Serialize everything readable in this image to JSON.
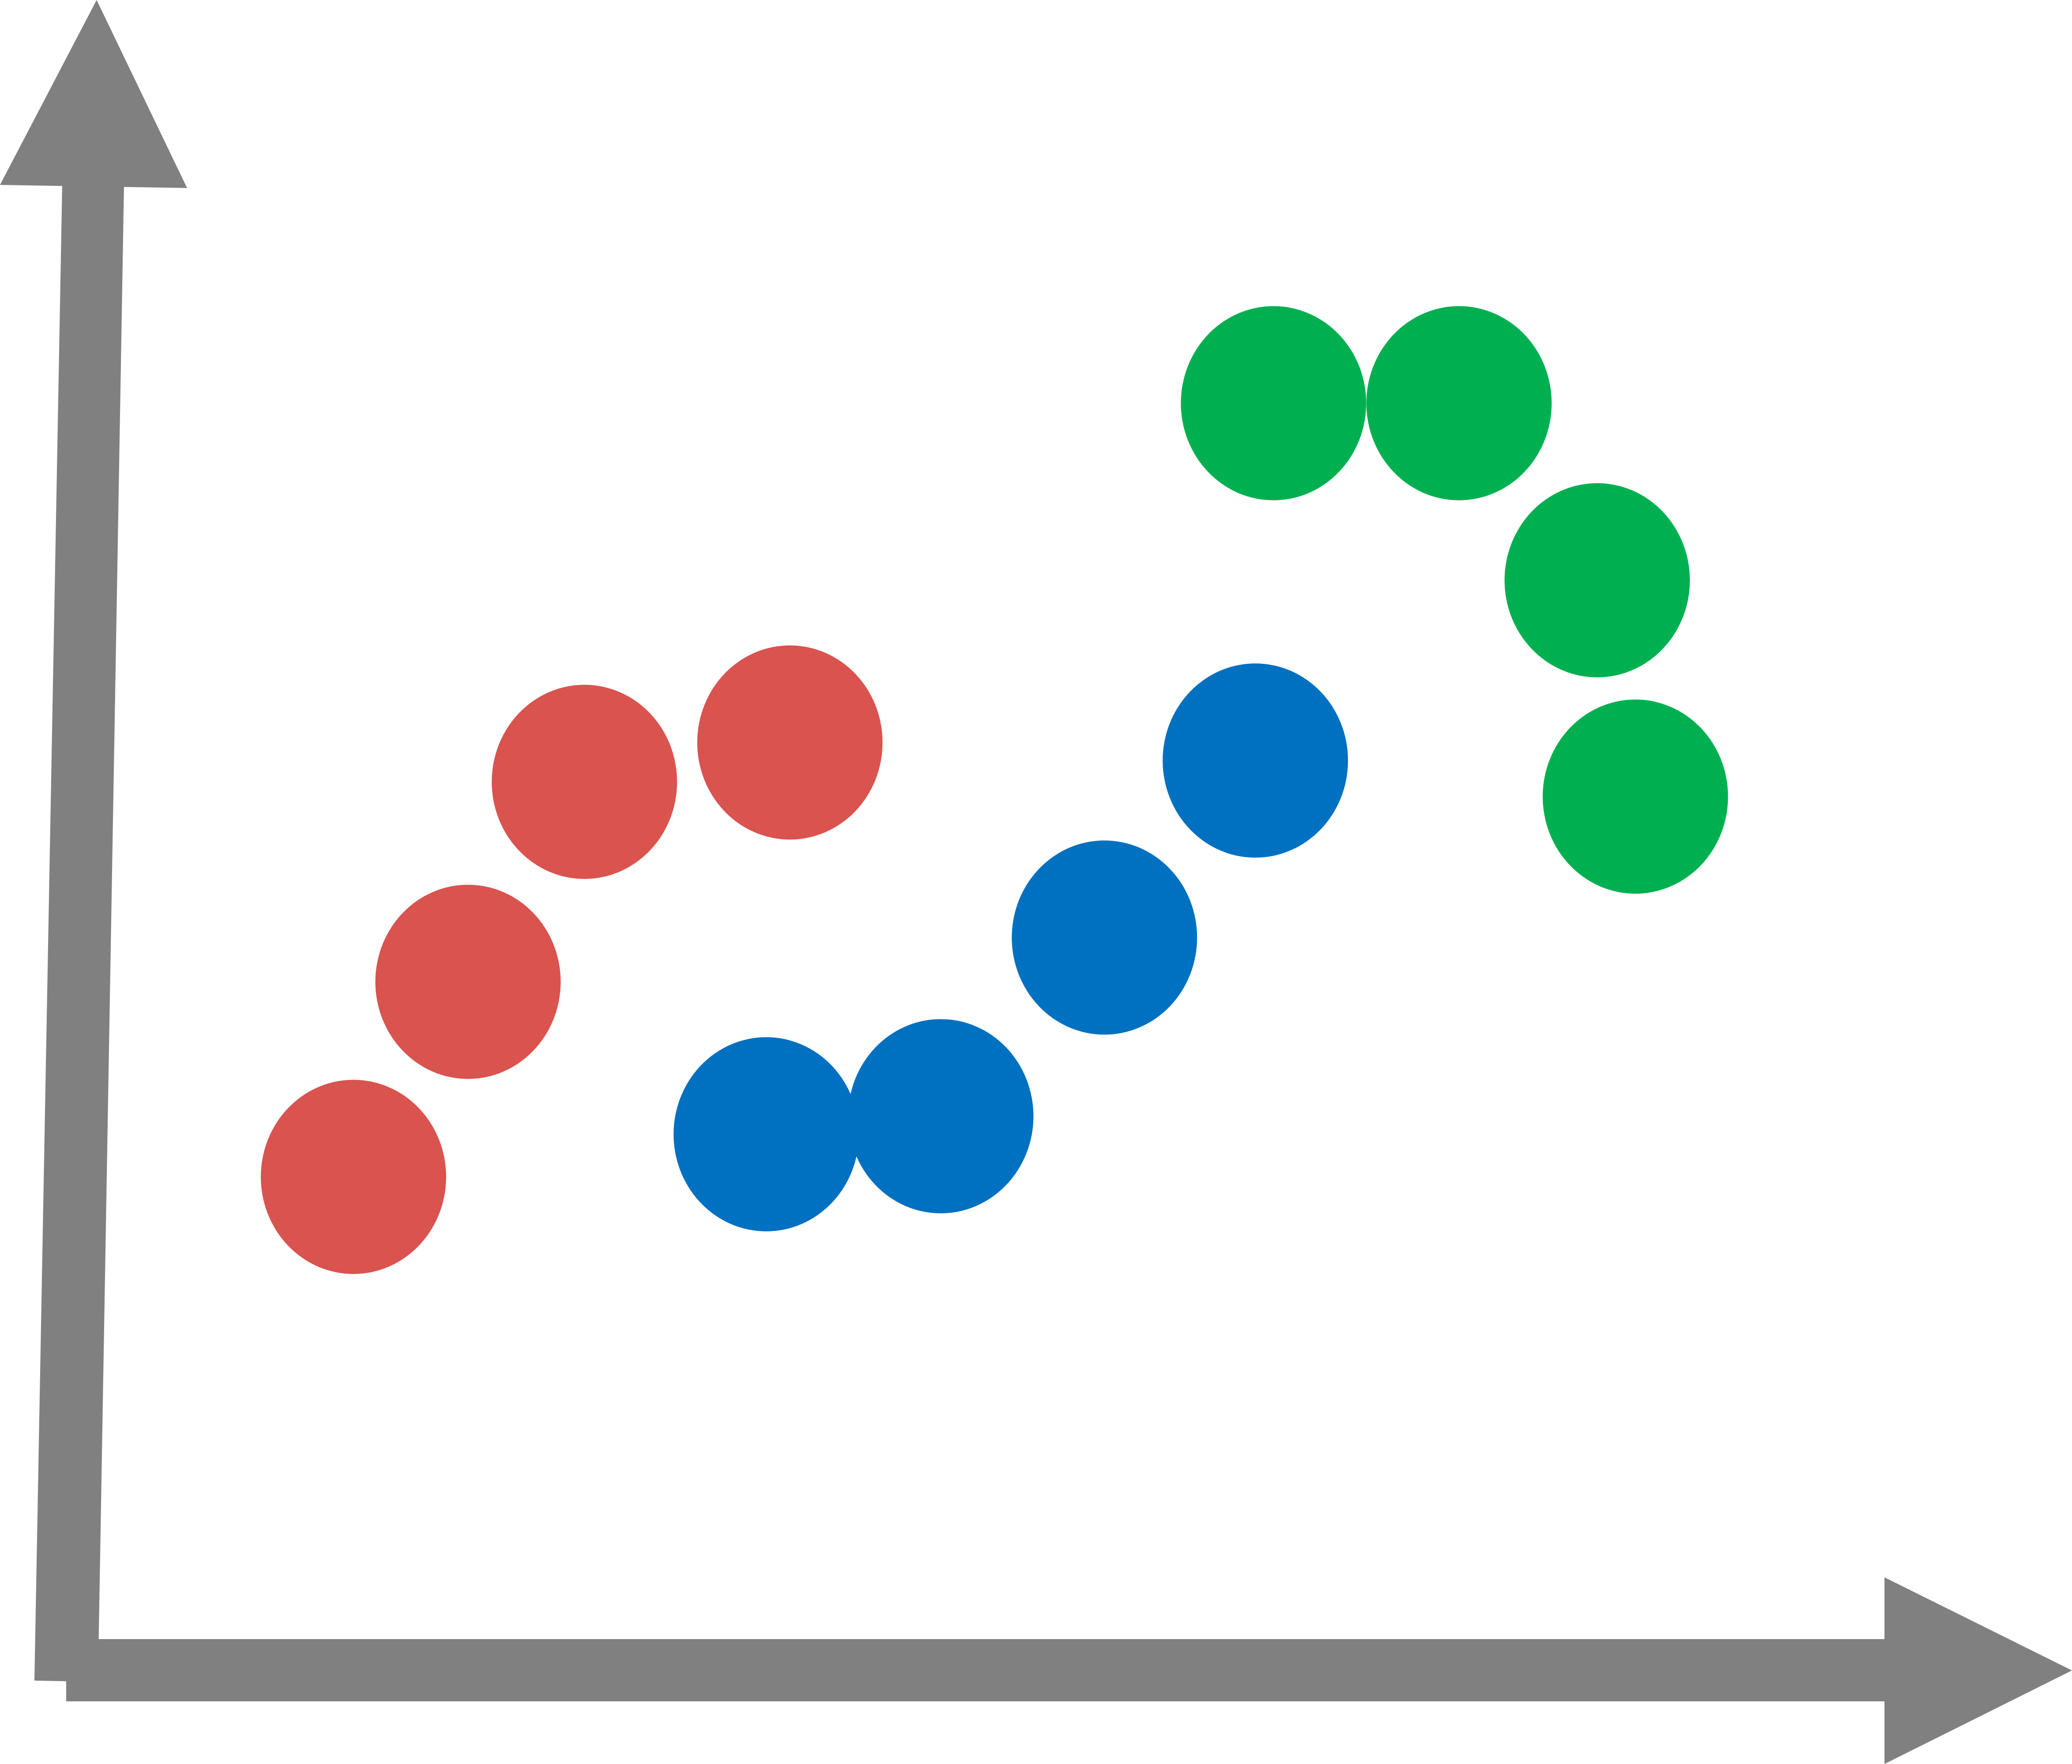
{
  "chart_data": {
    "type": "scatter",
    "title": "",
    "xlabel": "",
    "ylabel": "",
    "grid": false,
    "xlim": [
      0,
      100
    ],
    "ylim": [
      0,
      100
    ],
    "axis_color": "#808080",
    "series": [
      {
        "color": "#D9534F",
        "points": [
          {
            "x": 15.8,
            "y": 28.2
          },
          {
            "x": 22.1,
            "y": 40.1
          },
          {
            "x": 28.5,
            "y": 52.3
          },
          {
            "x": 39.8,
            "y": 54.7
          }
        ]
      },
      {
        "color": "#0070C0",
        "points": [
          {
            "x": 38.5,
            "y": 30.8
          },
          {
            "x": 48.1,
            "y": 31.9
          },
          {
            "x": 57.1,
            "y": 42.8
          },
          {
            "x": 65.4,
            "y": 53.6
          }
        ]
      },
      {
        "color": "#00B050",
        "points": [
          {
            "x": 66.4,
            "y": 75.4
          },
          {
            "x": 76.6,
            "y": 75.4
          },
          {
            "x": 84.2,
            "y": 64.6
          },
          {
            "x": 86.3,
            "y": 51.4
          }
        ]
      }
    ]
  }
}
